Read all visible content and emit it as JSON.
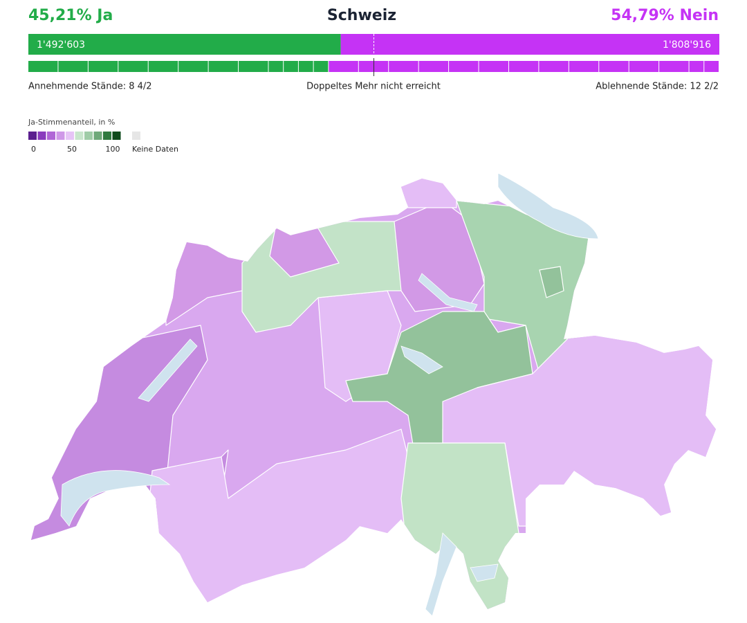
{
  "header": {
    "yes_label": "45,21% Ja",
    "title": "Schweiz",
    "no_label": "54,79% Nein"
  },
  "votes": {
    "yes": {
      "value": 1492603,
      "label": "1'492'603",
      "color": "#22ac49"
    },
    "no": {
      "value": 1808916,
      "label": "1'808'916",
      "color": "#c533f5"
    }
  },
  "cantons": {
    "yes": {
      "label": "Annehmende Stände: 8 4/2",
      "full": 8,
      "half": 4
    },
    "majority_label": "Doppeltes Mehr nicht erreicht",
    "no": {
      "label": "Ablehnende Stände: 12 2/2",
      "full": 12,
      "half": 2
    }
  },
  "legend": {
    "title": "Ja-Stimmenanteil, in %",
    "colors": [
      "#5b1f8f",
      "#8a3bbd",
      "#b066d6",
      "#cf98e8",
      "#e6c4f6",
      "#c8e6cc",
      "#9fcca7",
      "#6fa97a",
      "#2f7a3f",
      "#0e4a1b"
    ],
    "ticks": [
      0,
      50,
      100
    ],
    "no_data_label": "Keine Daten",
    "no_data_color": "#e6e6e6"
  }
}
